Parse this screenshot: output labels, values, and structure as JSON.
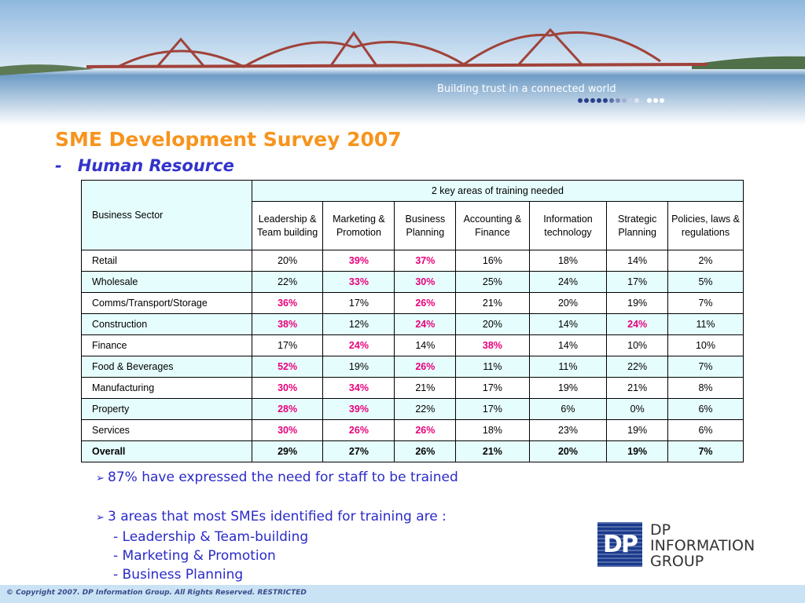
{
  "banner": {
    "tagline": "Building trust in a connected world"
  },
  "title": "SME Development Survey 2007",
  "subtitle_dash": "-",
  "subtitle": "Human Resource",
  "table": {
    "sector_header": "Business Sector",
    "group_header": "2 key areas of training needed",
    "columns": [
      "Leadership & Team building",
      "Marketing & Promotion",
      "Business Planning",
      "Accounting & Finance",
      "Information technology",
      "Strategic Planning",
      "Policies, laws & regulations"
    ],
    "highlight_color": "#e8007a",
    "rows": [
      {
        "sector": "Retail",
        "values": [
          "20%",
          "39%",
          "37%",
          "16%",
          "18%",
          "14%",
          "2%"
        ],
        "highlight": [
          1,
          2
        ]
      },
      {
        "sector": "Wholesale",
        "values": [
          "22%",
          "33%",
          "30%",
          "25%",
          "24%",
          "17%",
          "5%"
        ],
        "highlight": [
          1,
          2
        ]
      },
      {
        "sector": "Comms/Transport/Storage",
        "values": [
          "36%",
          "17%",
          "26%",
          "21%",
          "20%",
          "19%",
          "7%"
        ],
        "highlight": [
          0,
          2
        ]
      },
      {
        "sector": "Construction",
        "values": [
          "38%",
          "12%",
          "24%",
          "20%",
          "14%",
          "24%",
          "11%"
        ],
        "highlight": [
          0,
          2,
          5
        ]
      },
      {
        "sector": "Finance",
        "values": [
          "17%",
          "24%",
          "14%",
          "38%",
          "14%",
          "10%",
          "10%"
        ],
        "highlight": [
          1,
          3
        ]
      },
      {
        "sector": "Food & Beverages",
        "values": [
          "52%",
          "19%",
          "26%",
          "11%",
          "11%",
          "22%",
          "7%"
        ],
        "highlight": [
          0,
          2
        ]
      },
      {
        "sector": "Manufacturing",
        "values": [
          "30%",
          "34%",
          "21%",
          "17%",
          "19%",
          "21%",
          "8%"
        ],
        "highlight": [
          0,
          1
        ]
      },
      {
        "sector": "Property",
        "values": [
          "28%",
          "39%",
          "22%",
          "17%",
          "6%",
          "0%",
          "6%"
        ],
        "highlight": [
          0,
          1
        ]
      },
      {
        "sector": "Services",
        "values": [
          "30%",
          "26%",
          "26%",
          "18%",
          "23%",
          "19%",
          "6%"
        ],
        "highlight": [
          0,
          1,
          2
        ]
      }
    ],
    "total": {
      "sector": "Overall",
      "values": [
        "29%",
        "27%",
        "26%",
        "21%",
        "20%",
        "19%",
        "7%"
      ]
    }
  },
  "bullets": [
    {
      "text": "87% have expressed the need for staff to be trained",
      "items": []
    },
    {
      "text": "3 areas that most SMEs identified for training are :",
      "items": [
        "- Leadership & Team-building",
        "- Marketing & Promotion",
        "- Business Planning"
      ]
    }
  ],
  "logo": {
    "mark": "DP",
    "lines": [
      "DP",
      "INFORMATION",
      "GROUP"
    ]
  },
  "footer": "© Copyright 2007. DP Information Group. All Rights Reserved. RESTRICTED"
}
